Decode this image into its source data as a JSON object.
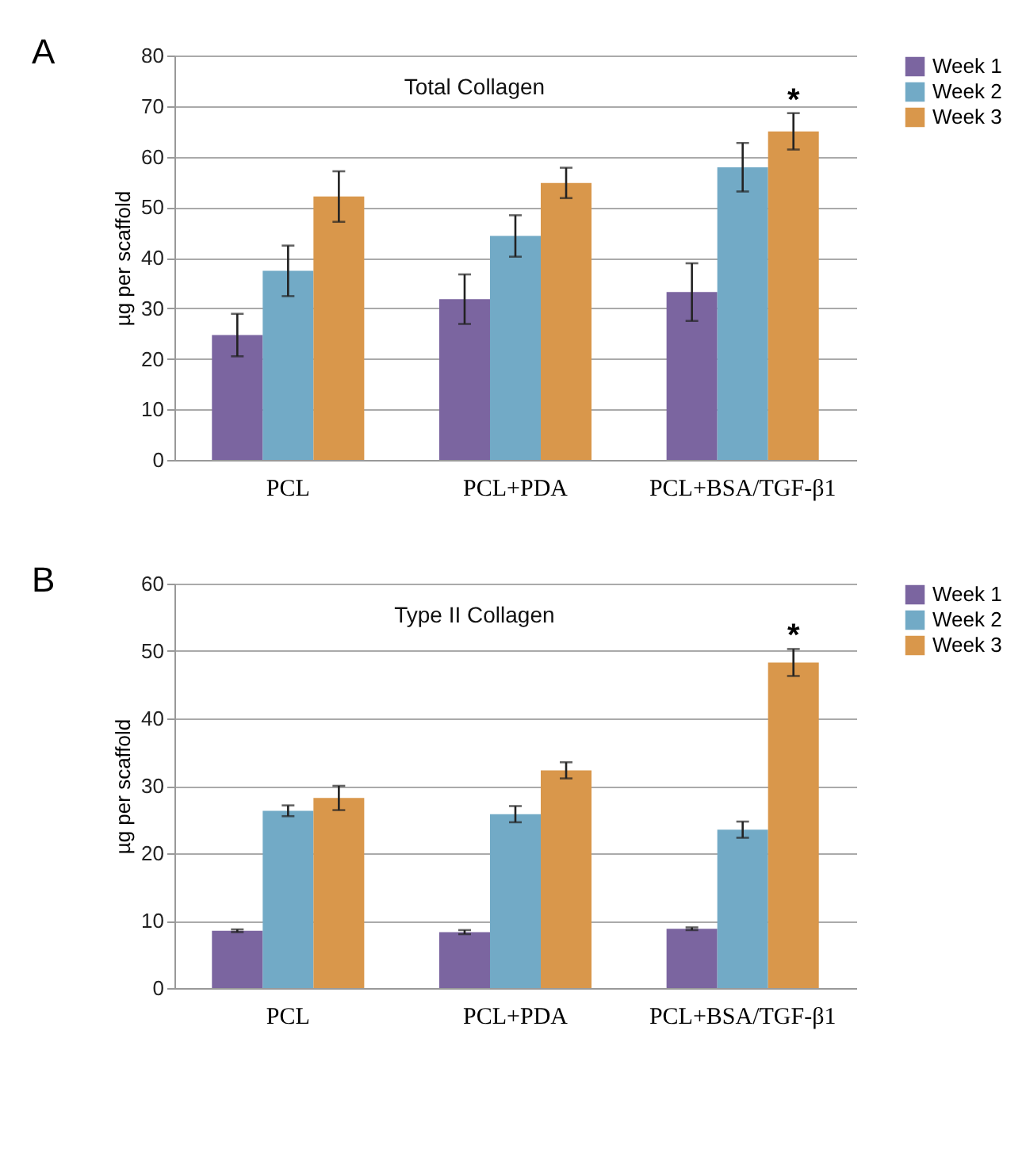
{
  "chart_data": [
    {
      "type": "bar",
      "title": "Total Collagen",
      "ylabel": "µg per scaffold",
      "categories": [
        "PCL",
        "PCL+PDA",
        "PCL+BSA/TGF-β1"
      ],
      "series": [
        {
          "name": "Week 1",
          "color": "#7b65a0",
          "values": [
            24.7,
            31.8,
            33.2
          ],
          "errors": [
            4.2,
            4.9,
            5.7
          ]
        },
        {
          "name": "Week 2",
          "color": "#72aac6",
          "values": [
            37.4,
            44.3,
            57.9
          ],
          "errors": [
            5.0,
            4.1,
            4.8
          ]
        },
        {
          "name": "Week 3",
          "color": "#d9974b",
          "values": [
            52.1,
            54.8,
            65.0
          ],
          "errors": [
            5.0,
            3.0,
            3.6
          ]
        }
      ],
      "ylim": [
        0,
        80
      ],
      "yticks": [
        0,
        10,
        20,
        30,
        40,
        50,
        60,
        70,
        80
      ],
      "grid": "y",
      "legend": "right",
      "annotations": [
        "A",
        "*"
      ]
    },
    {
      "type": "bar",
      "title": "Type II Collagen",
      "ylabel": "µg per scaffold",
      "categories": [
        "PCL",
        "PCL+PDA",
        "PCL+BSA/TGF-β1"
      ],
      "series": [
        {
          "name": "Week 1",
          "color": "#7b65a0",
          "values": [
            8.5,
            8.3,
            8.8
          ],
          "errors": [
            0.2,
            0.3,
            0.2
          ]
        },
        {
          "name": "Week 2",
          "color": "#72aac6",
          "values": [
            26.3,
            25.8,
            23.5
          ],
          "errors": [
            0.8,
            1.2,
            1.2
          ]
        },
        {
          "name": "Week 3",
          "color": "#d9974b",
          "values": [
            28.2,
            32.3,
            48.3
          ],
          "errors": [
            1.8,
            1.2,
            2.0
          ]
        }
      ],
      "ylim": [
        0,
        60
      ],
      "yticks": [
        0,
        10,
        20,
        30,
        40,
        50,
        60
      ],
      "grid": "y",
      "legend": "right",
      "annotations": [
        "B",
        "*"
      ]
    }
  ]
}
